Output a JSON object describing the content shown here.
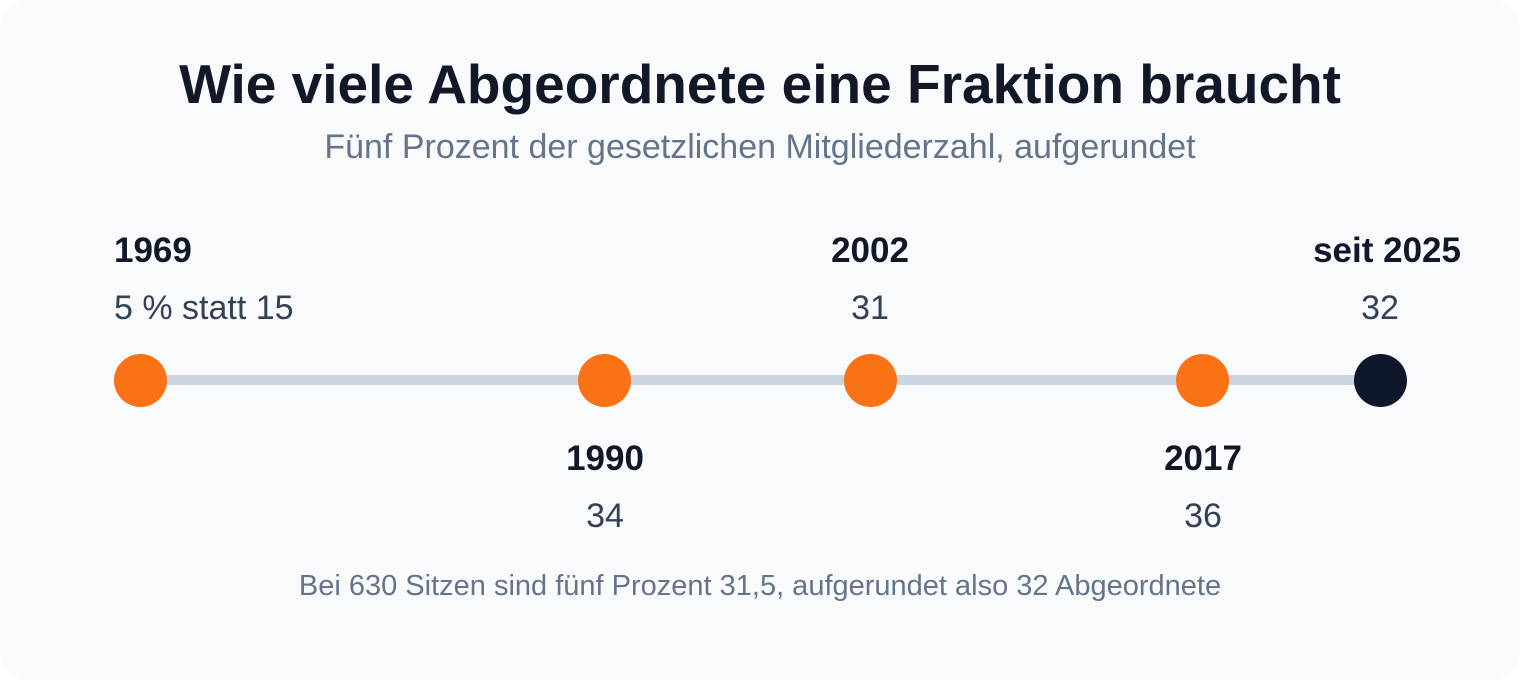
{
  "header": {
    "title": "Wie viele Abgeordnete eine Fraktion braucht",
    "subtitle": "Fünf Prozent der gesetzlichen Mitgliederzahl, aufgerundet"
  },
  "timeline": {
    "events": [
      {
        "year": "1969",
        "value": "5 % statt 15",
        "label_side": "above",
        "current": false
      },
      {
        "year": "1990",
        "value": "34",
        "label_side": "below",
        "current": false
      },
      {
        "year": "2002",
        "value": "31",
        "label_side": "above",
        "current": false
      },
      {
        "year": "2017",
        "value": "36",
        "label_side": "below",
        "current": false
      },
      {
        "year": "seit 2025",
        "value": "32",
        "label_side": "above",
        "current": true
      }
    ],
    "colors": {
      "past_dot": "#f97316",
      "current_dot": "#0f172a",
      "track": "#cbd5e1"
    }
  },
  "footnote": "Bei 630 Sitzen sind fünf Prozent 31,5, aufgerundet also 32 Abgeordnete"
}
